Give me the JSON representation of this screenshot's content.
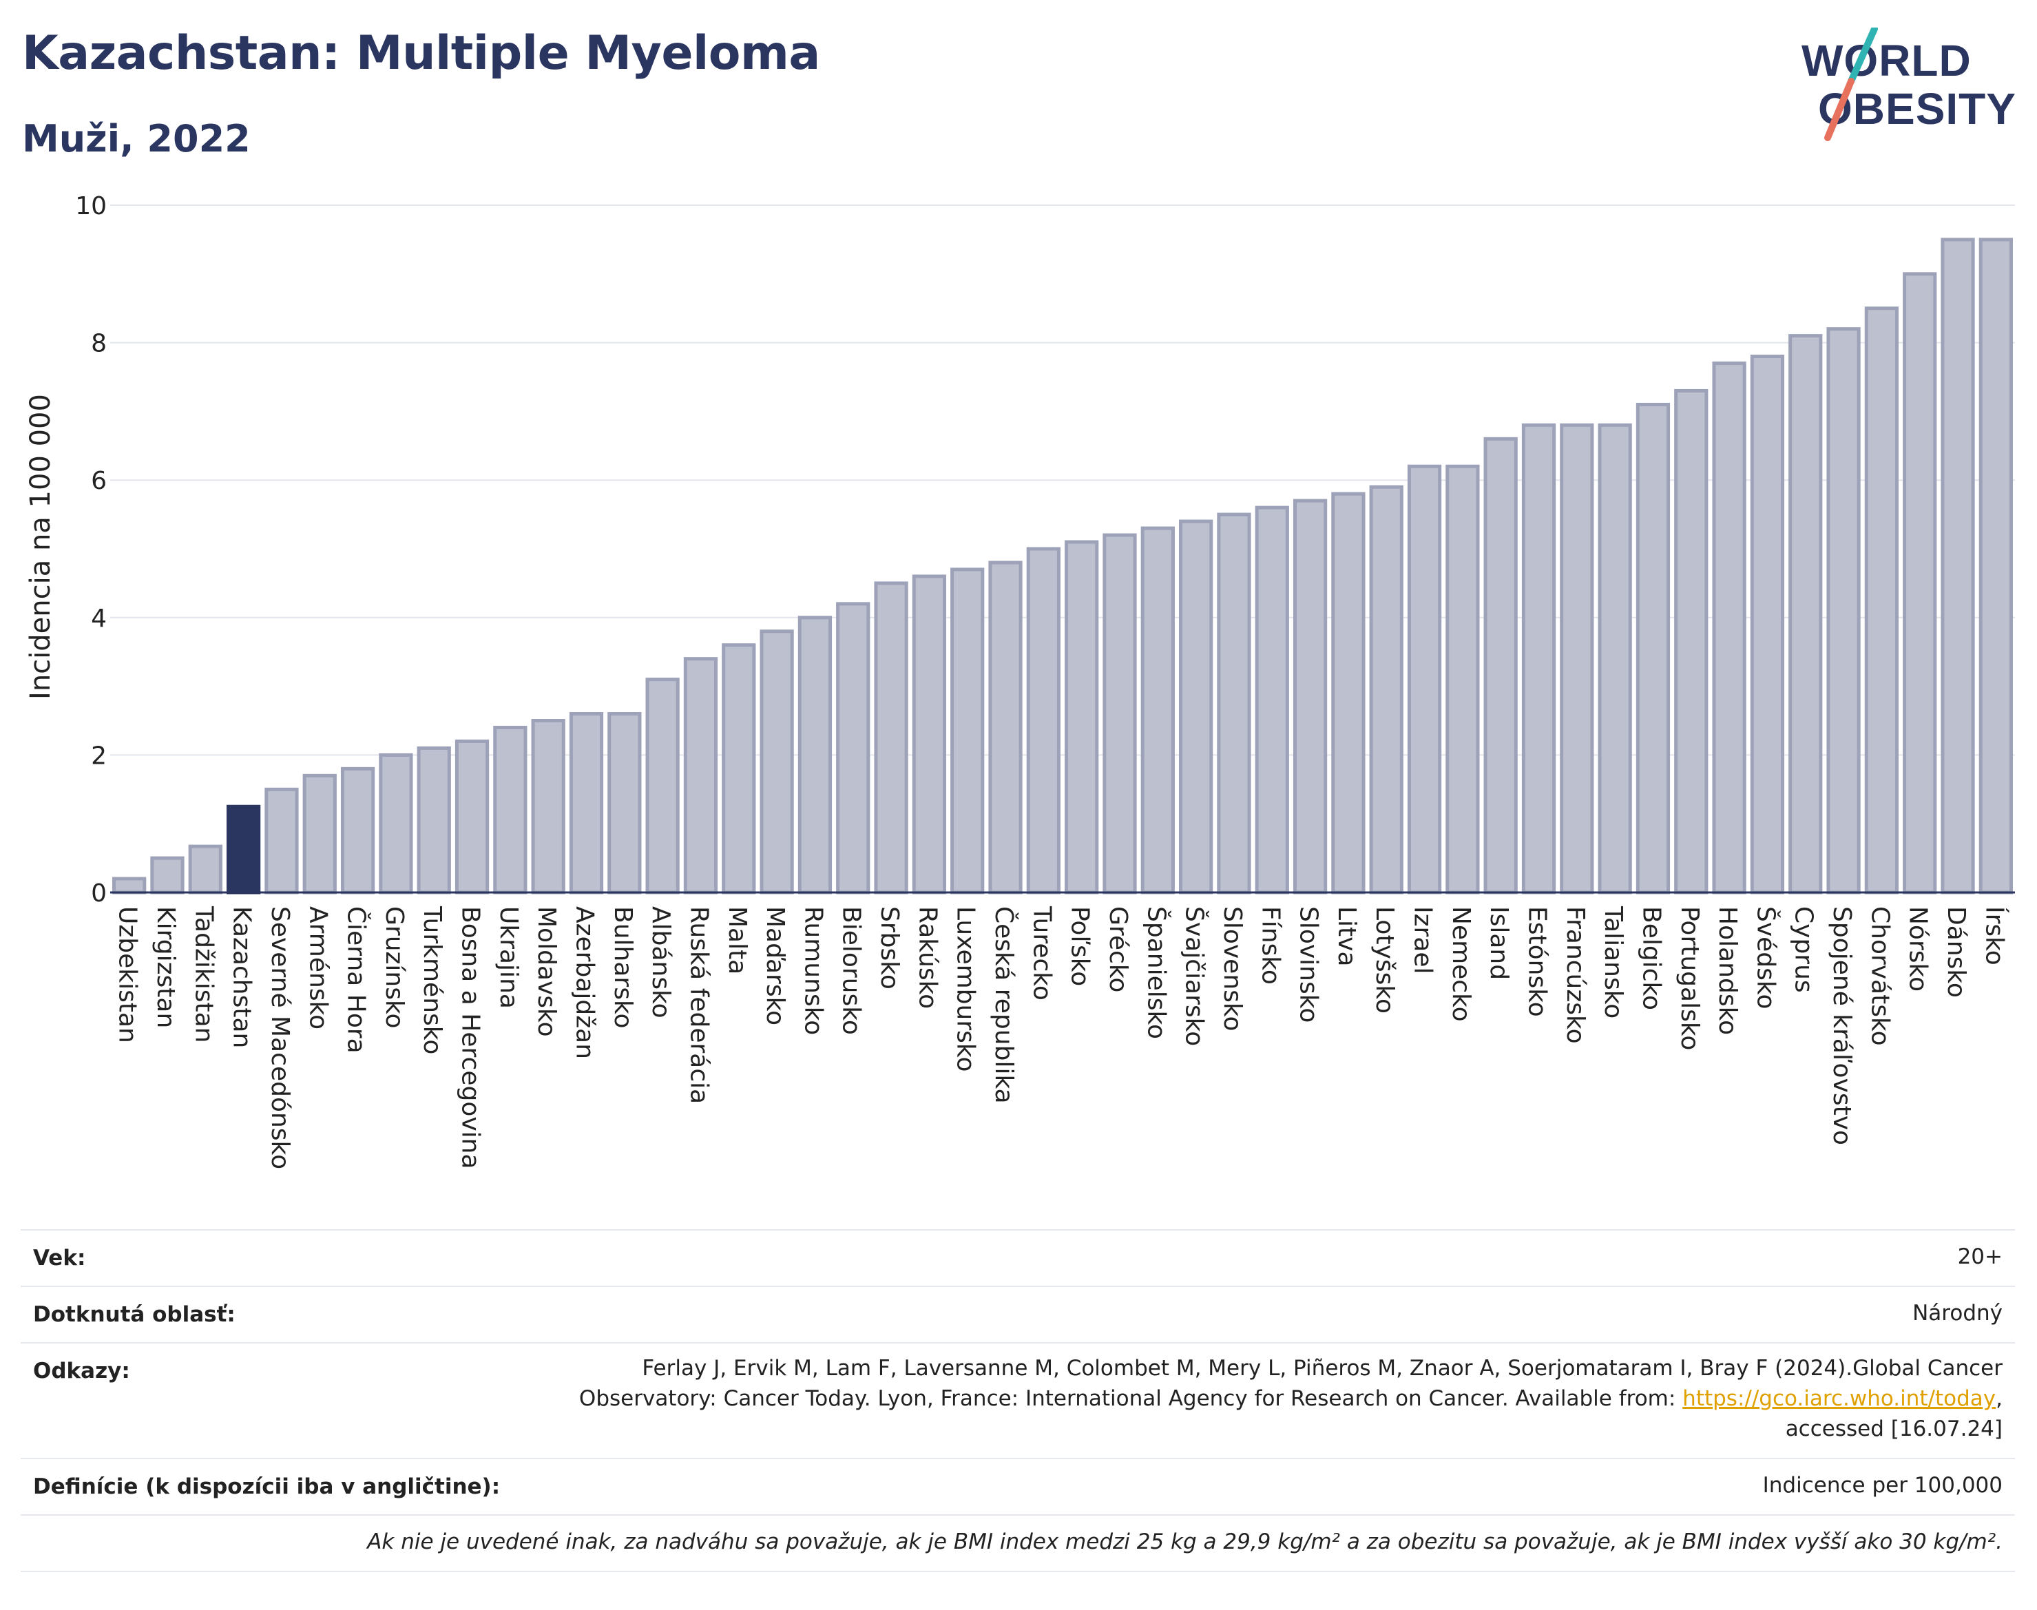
{
  "header": {
    "title": "Kazachstan: Multiple Myeloma",
    "subtitle": "Muži, 2022"
  },
  "logo": {
    "line1": "WORLD",
    "line2": "OBESITY",
    "accent_colors": [
      "#2fb3b3",
      "#e8715e"
    ]
  },
  "chart_data": {
    "type": "bar",
    "title": "Kazachstan: Multiple Myeloma",
    "subtitle": "Muži, 2022",
    "ylabel": "Incidencia na 100 000",
    "xlabel": "",
    "ylim": [
      0,
      10
    ],
    "yticks": [
      0,
      2,
      4,
      6,
      8,
      10
    ],
    "grid": true,
    "highlight_category": "Kazachstan",
    "colors": {
      "bar": "#bcc0cf",
      "bar_edge": "#9da2b9",
      "highlight": "#2b3660"
    },
    "categories": [
      "Uzbekistan",
      "Kirgizstan",
      "Tadžikistan",
      "Kazachstan",
      "Severné Macedónsko",
      "Arménsko",
      "Čierna Hora",
      "Gruzínsko",
      "Turkménsko",
      "Bosna a Hercegovina",
      "Ukrajina",
      "Moldavsko",
      "Azerbajdžan",
      "Bulharsko",
      "Albánsko",
      "Ruská federácia",
      "Malta",
      "Maďarsko",
      "Rumunsko",
      "Bielorusko",
      "Srbsko",
      "Rakúsko",
      "Luxembursko",
      "Česká republika",
      "Turecko",
      "Poľsko",
      "Grécko",
      "Španielsko",
      "Švajčiarsko",
      "Slovensko",
      "Fínsko",
      "Slovinsko",
      "Litva",
      "Lotyšsko",
      "Izrael",
      "Nemecko",
      "Island",
      "Estónsko",
      "Francúzsko",
      "Taliansko",
      "Belgicko",
      "Portugalsko",
      "Holandsko",
      "Švédsko",
      "Cyprus",
      "Spojené kráľovstvo",
      "Chorvátsko",
      "Nórsko",
      "Dánsko",
      "Írsko"
    ],
    "values": [
      0.2,
      0.5,
      0.67,
      1.25,
      1.5,
      1.7,
      1.8,
      2.0,
      2.1,
      2.2,
      2.4,
      2.5,
      2.6,
      2.6,
      3.1,
      3.4,
      3.6,
      3.8,
      4.0,
      4.2,
      4.5,
      4.6,
      4.7,
      4.8,
      5.0,
      5.1,
      5.2,
      5.3,
      5.4,
      5.5,
      5.6,
      5.7,
      5.8,
      5.9,
      6.2,
      6.2,
      6.6,
      6.8,
      6.8,
      6.8,
      7.1,
      7.3,
      7.7,
      7.8,
      8.1,
      8.2,
      8.5,
      9.0,
      9.5,
      9.5
    ]
  },
  "info": {
    "age": {
      "label": "Vek:",
      "value": "20+"
    },
    "area": {
      "label": "Dotknutá oblasť:",
      "value": "Národný"
    },
    "refs": {
      "label": "Odkazy:",
      "line1": "Ferlay J, Ervik M, Lam F, Laversanne M, Colombet M, Mery L, Piñeros M, Znaor A, Soerjomataram I, Bray F (2024).Global Cancer",
      "line2_prefix": "Observatory: Cancer Today. Lyon, France: International Agency for Research on Cancer. Available from: ",
      "link": "https://gco.iarc.who.int/today",
      "line2_suffix": ",",
      "line3": "accessed [16.07.24]"
    },
    "definitions": {
      "label": "Definície (k dispozícii iba v angličtine):",
      "value": "Indicence per 100,000"
    },
    "note": "Ak nie je uvedené inak, za nadváhu sa považuje, ak je BMI index medzi 25 kg a 29,9 kg/m² a za obezitu sa považuje, ak je BMI index vyšší ako 30 kg/m²."
  }
}
